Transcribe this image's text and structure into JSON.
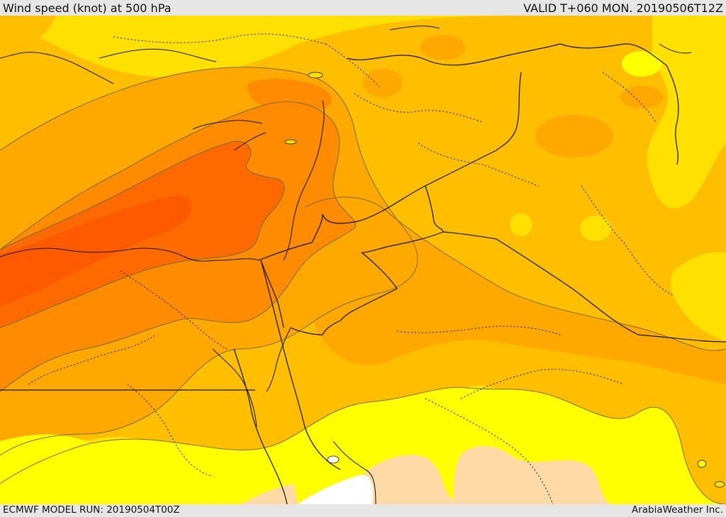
{
  "header": {
    "title": "Wind speed (knot) at 500 hPa",
    "valid": "VALID T+060 MON. 20190506T12Z"
  },
  "footer": {
    "model_run": "ECMWF MODEL RUN: 20190504T00Z",
    "credit": "ArabiaWeather Inc."
  },
  "colors": {
    "background": "#e6e6e6",
    "pale": "#ffd9a6",
    "white": "#ffffff",
    "yellow": "#ffff00",
    "gold": "#ffe000",
    "amber": "#ffbf00",
    "orange_light": "#ffa800",
    "orange": "#ff8c00",
    "orange_dark": "#ff6a00",
    "red_orange": "#ff5a00",
    "boundary": "#111111",
    "coast": "#111111",
    "contour": "#7a6a3a"
  },
  "map": {
    "region_labels": []
  }
}
